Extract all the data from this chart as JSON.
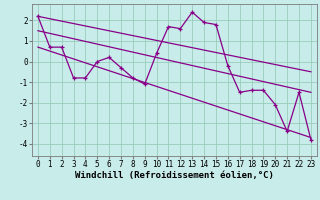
{
  "xlabel": "Windchill (Refroidissement éolien,°C)",
  "ylabel": "",
  "background_color": "#c8ecea",
  "line_color": "#880088",
  "spine_color": "#7b7b7b",
  "grid_color": "#99ccbb",
  "xlim": [
    -0.5,
    23.5
  ],
  "ylim": [
    -4.6,
    2.8
  ],
  "yticks": [
    -4,
    -3,
    -2,
    -1,
    0,
    1,
    2
  ],
  "xticks": [
    0,
    1,
    2,
    3,
    4,
    5,
    6,
    7,
    8,
    9,
    10,
    11,
    12,
    13,
    14,
    15,
    16,
    17,
    18,
    19,
    20,
    21,
    22,
    23
  ],
  "series1_x": [
    0,
    1,
    2,
    3,
    4,
    5,
    6,
    7,
    8,
    9,
    10,
    11,
    12,
    13,
    14,
    15,
    16,
    17,
    18,
    19,
    20,
    21,
    22,
    23
  ],
  "series1_y": [
    2.2,
    0.7,
    0.7,
    -0.8,
    -0.8,
    0.0,
    0.2,
    -0.3,
    -0.8,
    -1.1,
    0.4,
    1.7,
    1.6,
    2.4,
    1.9,
    1.8,
    -0.2,
    -1.5,
    -1.4,
    -1.4,
    -2.1,
    -3.4,
    -1.5,
    -3.8
  ],
  "trend1_x": [
    0,
    23
  ],
  "trend1_y": [
    0.7,
    -3.7
  ],
  "trend2_x": [
    0,
    23
  ],
  "trend2_y": [
    1.5,
    -1.5
  ],
  "trend3_x": [
    0,
    23
  ],
  "trend3_y": [
    2.2,
    -0.5
  ],
  "tick_fontsize": 5.5,
  "xlabel_fontsize": 6.5
}
